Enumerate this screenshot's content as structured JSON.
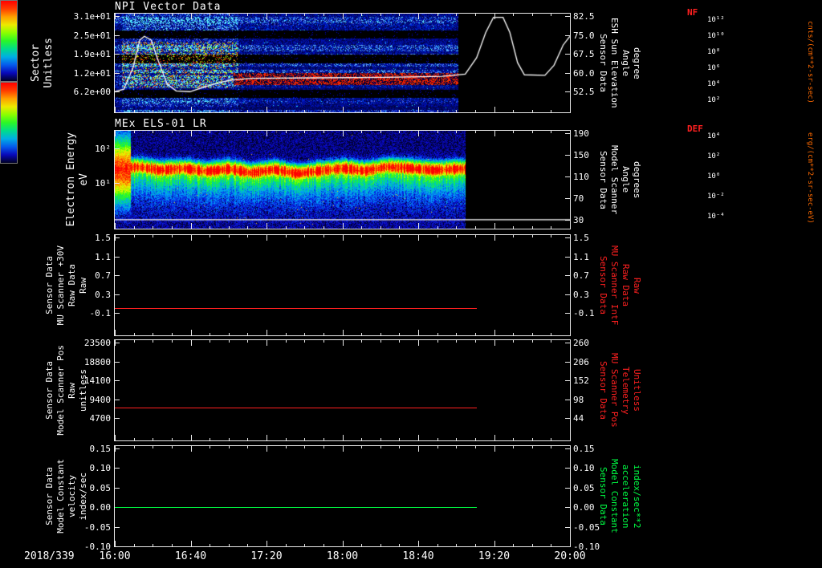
{
  "colors": {
    "white": "#ffffff",
    "red": "#ff2020",
    "green": "#00ff44",
    "unit_label": "#ff6a00",
    "axis": "#e8e8e8"
  },
  "x_axis": {
    "date": "2018/339",
    "ticks": [
      "16:00",
      "16:40",
      "17:20",
      "18:00",
      "18:40",
      "19:20",
      "20:00"
    ]
  },
  "colorbars": [
    {
      "name": "NF",
      "units": "cnts/(cm**2-sr-sec)",
      "tick_labels": [
        "10¹²",
        "10¹⁰",
        "10⁸",
        "10⁶",
        "10⁴",
        "10²"
      ]
    },
    {
      "name": "DEF",
      "units": "erg/(cm**2-sr-sec-eV)",
      "tick_labels": [
        "10⁴",
        "10²",
        "10⁰",
        "10⁻²",
        "10⁻⁴"
      ]
    }
  ],
  "chart_data": [
    {
      "id": "npi",
      "type": "heatmap",
      "title": "NPI Vector Data",
      "left_label_lines": [
        "Sector",
        "Unitless"
      ],
      "left_ticks": {
        "labels": [
          "3.1e+01",
          "2.5e+01",
          "1.9e+01",
          "1.2e+01",
          "6.2e+00"
        ],
        "fracs": [
          0.025,
          0.216,
          0.407,
          0.598,
          0.79
        ]
      },
      "right_label_lines": [
        "Sensor Data",
        "ESH Sun Elevation",
        "Angle",
        "degree"
      ],
      "right_ticks": {
        "labels": [
          "82.5",
          "75.0",
          "67.5",
          "60.0",
          "52.5"
        ],
        "fracs": [
          0.025,
          0.216,
          0.407,
          0.598,
          0.79
        ]
      },
      "right_axis_range": [
        83.5,
        44.3
      ],
      "data_end_frac": 0.755,
      "colorbar": "NF",
      "heatmap_desc": "32-sector NPI count-rate spectrogram: blue speckle background, black empty-sector bands, bright multicolor burst near 16:05-16:55, red enhancement band mid-sectors 16:55-19:00; no data after ~19:00",
      "black_row_bands": [
        [
          0.17,
          0.25
        ],
        [
          0.41,
          0.5
        ],
        [
          0.77,
          0.85
        ]
      ],
      "enhancement_bands": {
        "red_speckle_rows": [
          0.6,
          0.72
        ],
        "red_speckle_x": [
          0.26,
          0.755
        ],
        "bright_left_x": [
          0.015,
          0.27
        ],
        "bright_left_rows": [
          0.28,
          0.75
        ]
      },
      "overlay_series": {
        "name": "ESH Sun Elevation Angle (degree)",
        "color": "#ffffff",
        "axis": "right",
        "points": [
          [
            0,
            52.5
          ],
          [
            0.02,
            53.5
          ],
          [
            0.04,
            62
          ],
          [
            0.055,
            73
          ],
          [
            0.065,
            74.5
          ],
          [
            0.08,
            73
          ],
          [
            0.095,
            65
          ],
          [
            0.115,
            55.5
          ],
          [
            0.135,
            52.8
          ],
          [
            0.165,
            52.5
          ],
          [
            0.2,
            54.5
          ],
          [
            0.25,
            57
          ],
          [
            0.3,
            57.8
          ],
          [
            0.45,
            58
          ],
          [
            0.6,
            58.2
          ],
          [
            0.72,
            58.6
          ],
          [
            0.77,
            59.5
          ],
          [
            0.795,
            66
          ],
          [
            0.815,
            76
          ],
          [
            0.832,
            82
          ],
          [
            0.853,
            82
          ],
          [
            0.868,
            76
          ],
          [
            0.885,
            64
          ],
          [
            0.9,
            59.2
          ],
          [
            0.945,
            59
          ],
          [
            0.965,
            63
          ],
          [
            0.985,
            71
          ],
          [
            1,
            74.5
          ]
        ]
      }
    },
    {
      "id": "els",
      "type": "heatmap",
      "title": "MEx ELS-01 LR",
      "left_label_lines": [
        "Electron Energy",
        "eV"
      ],
      "left_ticks": {
        "labels": [
          "10²",
          "10¹"
        ],
        "fracs": [
          0.18,
          0.533
        ]
      },
      "right_label_lines": [
        "Sensor Data",
        "Model Scanner",
        "Angle",
        "degrees"
      ],
      "right_ticks": {
        "labels": [
          "190",
          "150",
          "110",
          "70",
          "30"
        ],
        "fracs": [
          0.025,
          0.246,
          0.467,
          0.688,
          0.909
        ]
      },
      "right_axis_range": [
        194.5,
        13.5
      ],
      "energy_log_range": [
        2.51,
        -0.32
      ],
      "data_end_frac": 0.77,
      "colorbar": "DEF",
      "heatmap_desc": "electron differential energy flux spectrogram: intense red band ~20-30 eV meandering over time, green/cyan tails to low energies, dark speckle at high energies; no data after ~19:05",
      "band_center_ev": [
        [
          0,
          25
        ],
        [
          0.05,
          30
        ],
        [
          0.1,
          24
        ],
        [
          0.15,
          27
        ],
        [
          0.2,
          22
        ],
        [
          0.25,
          26
        ],
        [
          0.3,
          20
        ],
        [
          0.35,
          25
        ],
        [
          0.4,
          19
        ],
        [
          0.45,
          23
        ],
        [
          0.5,
          27
        ],
        [
          0.55,
          23
        ],
        [
          0.6,
          30
        ],
        [
          0.65,
          27
        ],
        [
          0.7,
          24
        ],
        [
          0.75,
          26
        ],
        [
          0.77,
          26
        ]
      ],
      "overlay_series": {
        "name": "Model Scanner Angle (degrees)",
        "color": "#ffffff",
        "axis": "right",
        "points": [
          [
            0,
            30
          ],
          [
            1,
            30
          ]
        ]
      }
    },
    {
      "id": "mu30v",
      "type": "line",
      "left_label_lines": [
        "Sensor Data",
        "MU Scanner +30V",
        "Raw Data",
        "Raw"
      ],
      "left_ticks": {
        "labels": [
          "1.5",
          "1.1",
          "0.7",
          "0.3",
          "-0.1"
        ],
        "fracs": [
          0.024,
          0.212,
          0.4,
          0.588,
          0.776
        ]
      },
      "right_label_lines": [
        "Sensor Data",
        "MU Scanner IntF",
        "Raw Data",
        "Raw"
      ],
      "right_label_color": "#ff2020",
      "right_ticks": {
        "labels": [
          "1.5",
          "1.1",
          "0.7",
          "0.3",
          "-0.1"
        ],
        "fracs": [
          0.024,
          0.212,
          0.4,
          0.588,
          0.776
        ]
      },
      "left_axis_range": [
        1.551,
        -0.577
      ],
      "series": {
        "name": "MU Scanner +30V Raw Data",
        "color": "#ff2020",
        "value": 0.0,
        "x_span": [
          0,
          0.795
        ]
      }
    },
    {
      "id": "scanpos",
      "type": "line",
      "left_label_lines": [
        "Sensor Data",
        "Model Scanner Pos",
        "Raw",
        "unitless"
      ],
      "left_ticks": {
        "labels": [
          "23500",
          "18800",
          "14100",
          "9400",
          "4700"
        ],
        "fracs": [
          0.024,
          0.212,
          0.4,
          0.588,
          0.776
        ]
      },
      "right_label_lines": [
        "Sensor Data",
        "MU Scanner Pos",
        "Telemetry",
        "Unitless"
      ],
      "right_label_color": "#ff2020",
      "right_ticks": {
        "labels": [
          "260",
          "206",
          "152",
          "98",
          "44"
        ],
        "fracs": [
          0.024,
          0.212,
          0.4,
          0.588,
          0.776
        ]
      },
      "left_axis_range": [
        24100,
        -900
      ],
      "series": {
        "name": "Model Scanner Pos Raw",
        "color": "#ff2020",
        "value": 7400,
        "x_span": [
          0,
          0.795
        ]
      }
    },
    {
      "id": "modelconst",
      "type": "line",
      "left_label_lines": [
        "Sensor Data",
        "Model Constant",
        "velocity",
        "index/sec"
      ],
      "left_ticks": {
        "labels": [
          "0.15",
          "0.10",
          "0.05",
          "0.00",
          "-0.05",
          "-0.10"
        ],
        "fracs": [
          0.024,
          0.219,
          0.414,
          0.61,
          0.805,
          1.0
        ]
      },
      "right_label_lines": [
        "Sensor Data",
        "Model Constant",
        "acceleration",
        "index/sec**2"
      ],
      "right_label_color": "#00ff44",
      "right_ticks": {
        "labels": [
          "0.15",
          "0.10",
          "0.05",
          "0.00",
          "-0.05",
          "-0.10"
        ],
        "fracs": [
          0.024,
          0.219,
          0.414,
          0.61,
          0.805,
          1.0
        ]
      },
      "left_axis_range": [
        0.1561,
        -0.1
      ],
      "series": {
        "name": "Model Constant velocity",
        "color": "#00ff44",
        "value": 0.0,
        "x_span": [
          0,
          0.795
        ]
      }
    }
  ]
}
